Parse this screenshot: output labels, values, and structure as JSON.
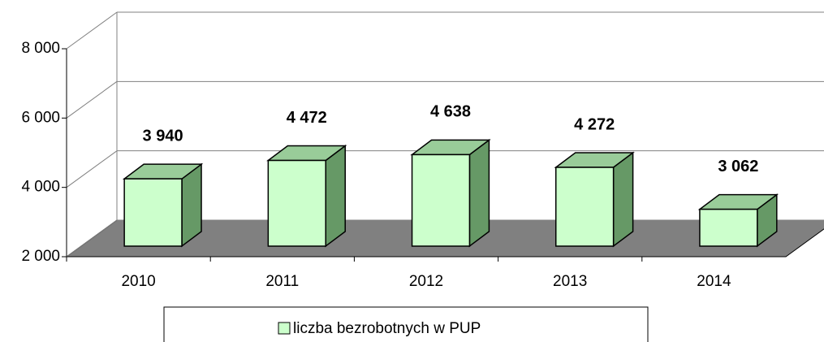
{
  "chart_data": {
    "type": "bar3d",
    "categories": [
      "2010",
      "2011",
      "2012",
      "2013",
      "2014"
    ],
    "series": [
      {
        "name": "liczba bezrobotnych w PUP",
        "color": "#ccffcc",
        "values": [
          3940,
          4472,
          4638,
          4272,
          3062
        ],
        "value_labels": [
          "3 940",
          "4 472",
          "4 638",
          "4 272",
          "3 062"
        ]
      }
    ],
    "ylim": [
      2000,
      8000
    ],
    "yticks": [
      {
        "value": 2000,
        "label": "2 000"
      },
      {
        "value": 4000,
        "label": "4 000"
      },
      {
        "value": 6000,
        "label": "6 000"
      },
      {
        "value": 8000,
        "label": "8 000"
      }
    ],
    "grid": true,
    "legend": "bottom"
  }
}
